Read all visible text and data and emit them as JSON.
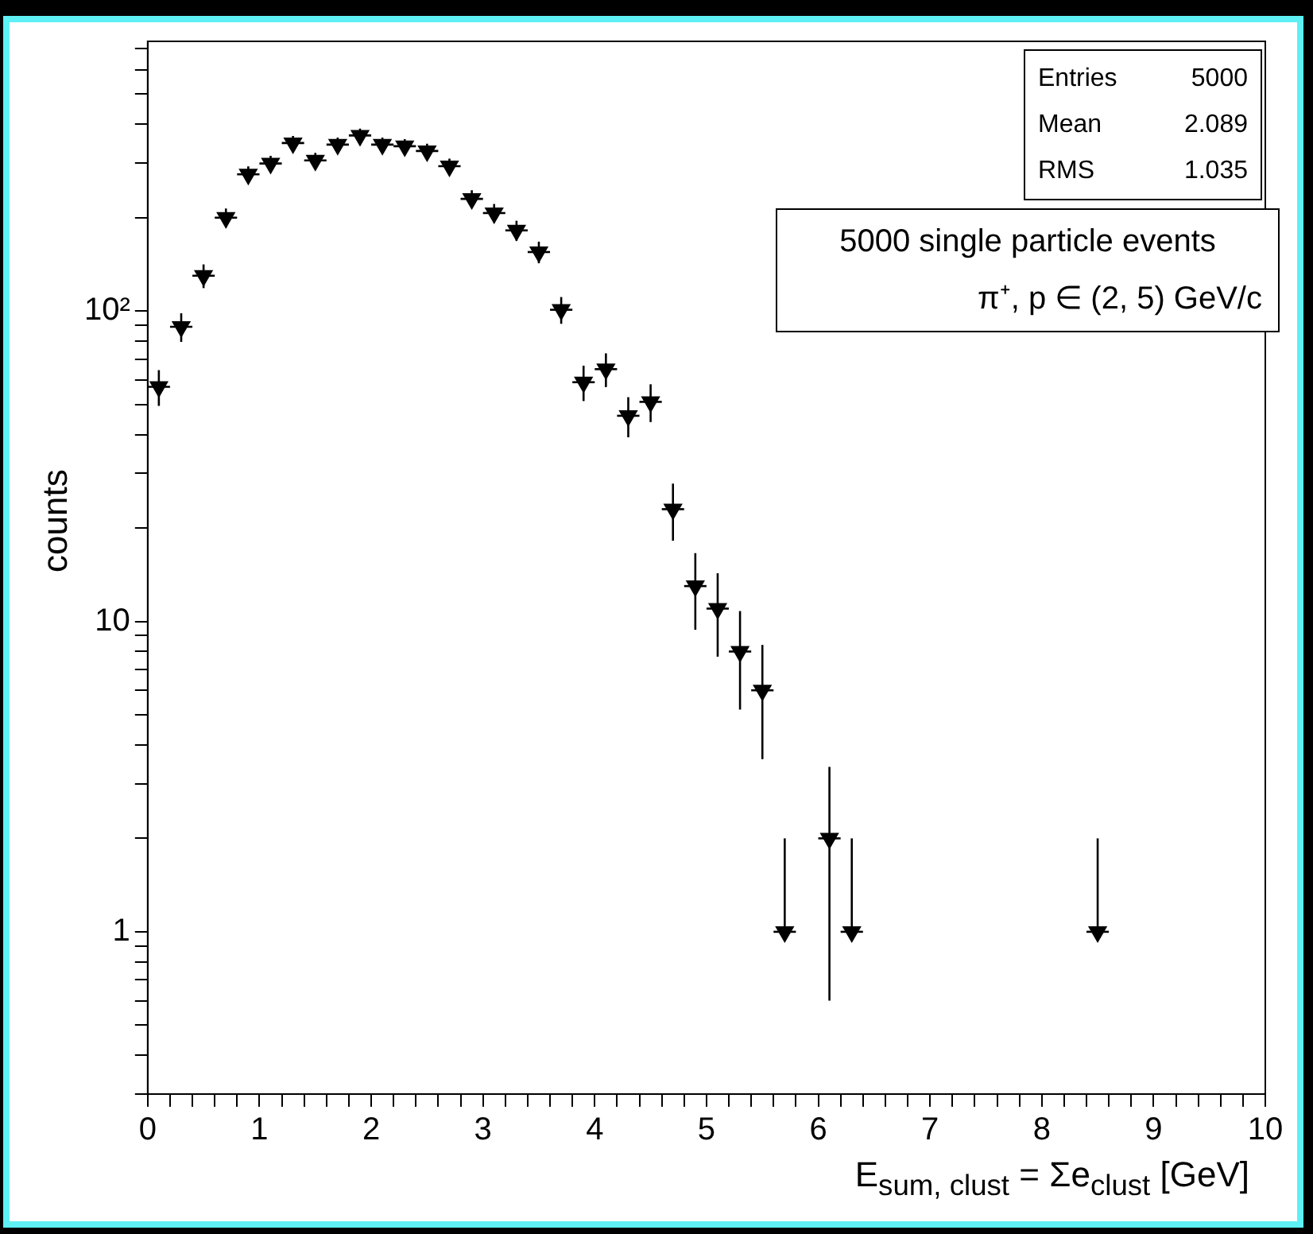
{
  "chart_data": {
    "type": "scatter",
    "xlabel": "E$_{sum, clust}$ = Σe$_{clust}$ [GeV]",
    "ylabel": "counts",
    "annotations": [
      "Entries 5000",
      "Mean 2.089",
      "RMS 1.035",
      "5000 single particle events",
      "π⁺, p ∈ (2, 5) GeV/c"
    ],
    "x": [
      0.1,
      0.3,
      0.5,
      0.7,
      0.9,
      1.1,
      1.3,
      1.5,
      1.7,
      1.9,
      2.1,
      2.3,
      2.5,
      2.7,
      2.9,
      3.1,
      3.3,
      3.5,
      3.7,
      3.9,
      4.1,
      4.3,
      4.5,
      4.7,
      4.9,
      5.1,
      5.3,
      5.5,
      5.7,
      6.1,
      6.3,
      8.5
    ],
    "values": [
      57,
      89,
      130,
      200,
      276,
      299,
      348,
      306,
      344,
      368,
      344,
      340,
      328,
      293,
      230,
      207,
      182,
      155,
      101,
      59,
      65,
      46,
      51,
      23,
      13,
      11,
      8,
      6,
      1,
      2,
      1,
      1
    ],
    "errors": [
      7.5,
      9.4,
      11.4,
      14.1,
      16.6,
      17.3,
      18.7,
      17.5,
      18.5,
      19.2,
      18.5,
      18.4,
      18.1,
      17.1,
      15.2,
      14.4,
      13.5,
      12.4,
      10,
      7.7,
      8.1,
      6.8,
      7.1,
      4.8,
      3.6,
      3.3,
      2.8,
      2.4,
      1,
      1.4,
      1,
      1
    ],
    "xerrors": [
      0.1,
      0.1,
      0.1,
      0.1,
      0.1,
      0.1,
      0.1,
      0.1,
      0.1,
      0.1,
      0.1,
      0.1,
      0.1,
      0.1,
      0.1,
      0.1,
      0.1,
      0.1,
      0.1,
      0.1,
      0.1,
      0.1,
      0.1,
      0.1,
      0.1,
      0.1,
      0.1,
      0.1,
      0.1,
      0.1,
      0.1,
      0.1
    ],
    "color": "#000000",
    "marker": "triangle",
    "log": "y",
    "xlim": [
      0,
      10
    ],
    "ylim": [
      0.3,
      740
    ],
    "xticks": [
      0,
      {
        "value": 0.2,
        "label": null
      },
      {
        "value": 0.4,
        "label": null
      },
      {
        "value": 0.6,
        "label": null
      },
      {
        "value": 0.8,
        "label": null
      },
      1,
      {
        "value": 1.2,
        "label": null
      },
      {
        "value": 1.4,
        "label": null
      },
      {
        "value": 1.6,
        "label": null
      },
      {
        "value": 1.8,
        "label": null
      },
      2,
      {
        "value": 2.2,
        "label": null
      },
      {
        "value": 2.4,
        "label": null
      },
      {
        "value": 2.6,
        "label": null
      },
      {
        "value": 2.8,
        "label": null
      },
      3,
      {
        "value": 3.2,
        "label": null
      },
      {
        "value": 3.4,
        "label": null
      },
      {
        "value": 3.6,
        "label": null
      },
      {
        "value": 3.8,
        "label": null
      },
      4,
      {
        "value": 4.2,
        "label": null
      },
      {
        "value": 4.4,
        "label": null
      },
      {
        "value": 4.6,
        "label": null
      },
      {
        "value": 4.8,
        "label": null
      },
      5,
      {
        "value": 5.2,
        "label": null
      },
      {
        "value": 5.4,
        "label": null
      },
      {
        "value": 5.6,
        "label": null
      },
      {
        "value": 5.8,
        "label": null
      },
      6,
      {
        "value": 6.2,
        "label": null
      },
      {
        "value": 6.4,
        "label": null
      },
      {
        "value": 6.6,
        "label": null
      },
      {
        "value": 6.8,
        "label": null
      },
      7,
      {
        "value": 7.2,
        "label": null
      },
      {
        "value": 7.4,
        "label": null
      },
      {
        "value": 7.6,
        "label": null
      },
      {
        "value": 7.8,
        "label": null
      },
      8,
      {
        "value": 8.2,
        "label": null
      },
      {
        "value": 8.4,
        "label": null
      },
      {
        "value": 8.6,
        "label": null
      },
      {
        "value": 8.8,
        "label": null
      },
      9,
      {
        "value": 9.2,
        "label": null
      },
      {
        "value": 9.4,
        "label": null
      },
      {
        "value": 9.6,
        "label": null
      },
      {
        "value": 9.8,
        "label": null
      },
      10
    ],
    "yticks": [
      {
        "value": 0.3,
        "label": null
      },
      {
        "value": 0.4,
        "label": null
      },
      {
        "value": 0.5,
        "label": null
      },
      {
        "value": 0.6,
        "label": null
      },
      {
        "value": 0.7,
        "label": null
      },
      {
        "value": 0.8,
        "label": null
      },
      {
        "value": 0.9,
        "label": null
      },
      1,
      {
        "value": 2,
        "label": null
      },
      {
        "value": 3,
        "label": null
      },
      {
        "value": 4,
        "label": null
      },
      {
        "value": 5,
        "label": null
      },
      {
        "value": 6,
        "label": null
      },
      {
        "value": 7,
        "label": null
      },
      {
        "value": 8,
        "label": null
      },
      {
        "value": 9,
        "label": null
      },
      10,
      {
        "value": 20,
        "label": null
      },
      {
        "value": 30,
        "label": null
      },
      {
        "value": 40,
        "label": null
      },
      {
        "value": 50,
        "label": null
      },
      {
        "value": 60,
        "label": null
      },
      {
        "value": 70,
        "label": null
      },
      {
        "value": 80,
        "label": null
      },
      {
        "value": 90,
        "label": null
      },
      {
        "value": 100,
        "label": "10²"
      },
      {
        "value": 200,
        "label": null
      },
      {
        "value": 300,
        "label": null
      },
      {
        "value": 400,
        "label": null
      },
      {
        "value": 500,
        "label": null
      },
      {
        "value": 600,
        "label": null
      },
      {
        "value": 700,
        "label": null
      }
    ]
  }
}
